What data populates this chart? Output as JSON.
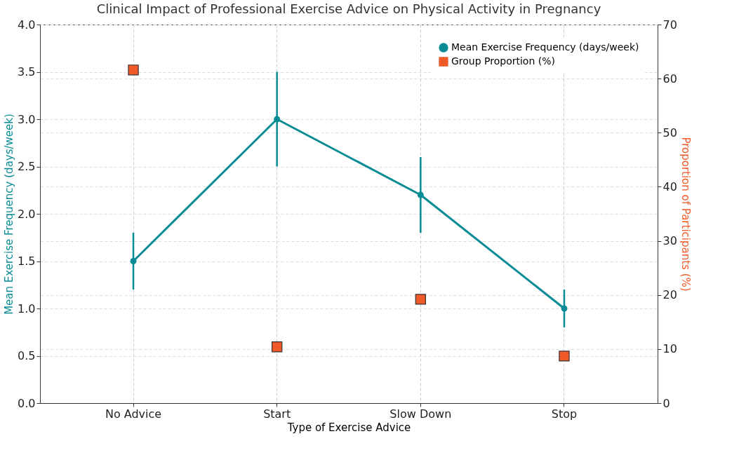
{
  "chart_data": {
    "type": "line",
    "title": "Clinical Impact of Professional Exercise Advice on Physical Activity in Pregnancy",
    "xlabel": "Type of Exercise Advice",
    "ylabel": "Mean Exercise Frequency (days/week)",
    "y2label": "Proportion of Participants (%)",
    "categories": [
      "No Advice",
      "Start",
      "Slow Down",
      "Stop"
    ],
    "series": [
      {
        "name": "Mean Exercise Frequency (days/week)",
        "color": "#0a8c96",
        "values": [
          1.5,
          3.0,
          2.2,
          1.0
        ],
        "errors": [
          0.3,
          0.5,
          0.4,
          0.2
        ],
        "marker": "circle"
      },
      {
        "name": "Group Proportion (%)",
        "type": "scatter",
        "axis": "y2",
        "color": "#f05a28",
        "values": [
          61.6,
          10.4,
          19.2,
          8.7
        ],
        "marker": "square"
      }
    ],
    "ylim": [
      0,
      4
    ],
    "yticks": [
      {
        "value": 0,
        "label": "0.0"
      },
      0.5,
      {
        "value": 1,
        "label": "1.0"
      },
      1.5,
      {
        "value": 2,
        "label": "2.0"
      },
      2.5,
      {
        "value": 3,
        "label": "3.0"
      },
      3.5,
      {
        "value": 4,
        "label": "4.0"
      }
    ],
    "y2lim": [
      0,
      70
    ],
    "y2ticks": [
      0,
      10,
      20,
      30,
      40,
      50,
      60,
      70
    ],
    "grid": true,
    "legend": "top right",
    "line_style": "solid"
  }
}
